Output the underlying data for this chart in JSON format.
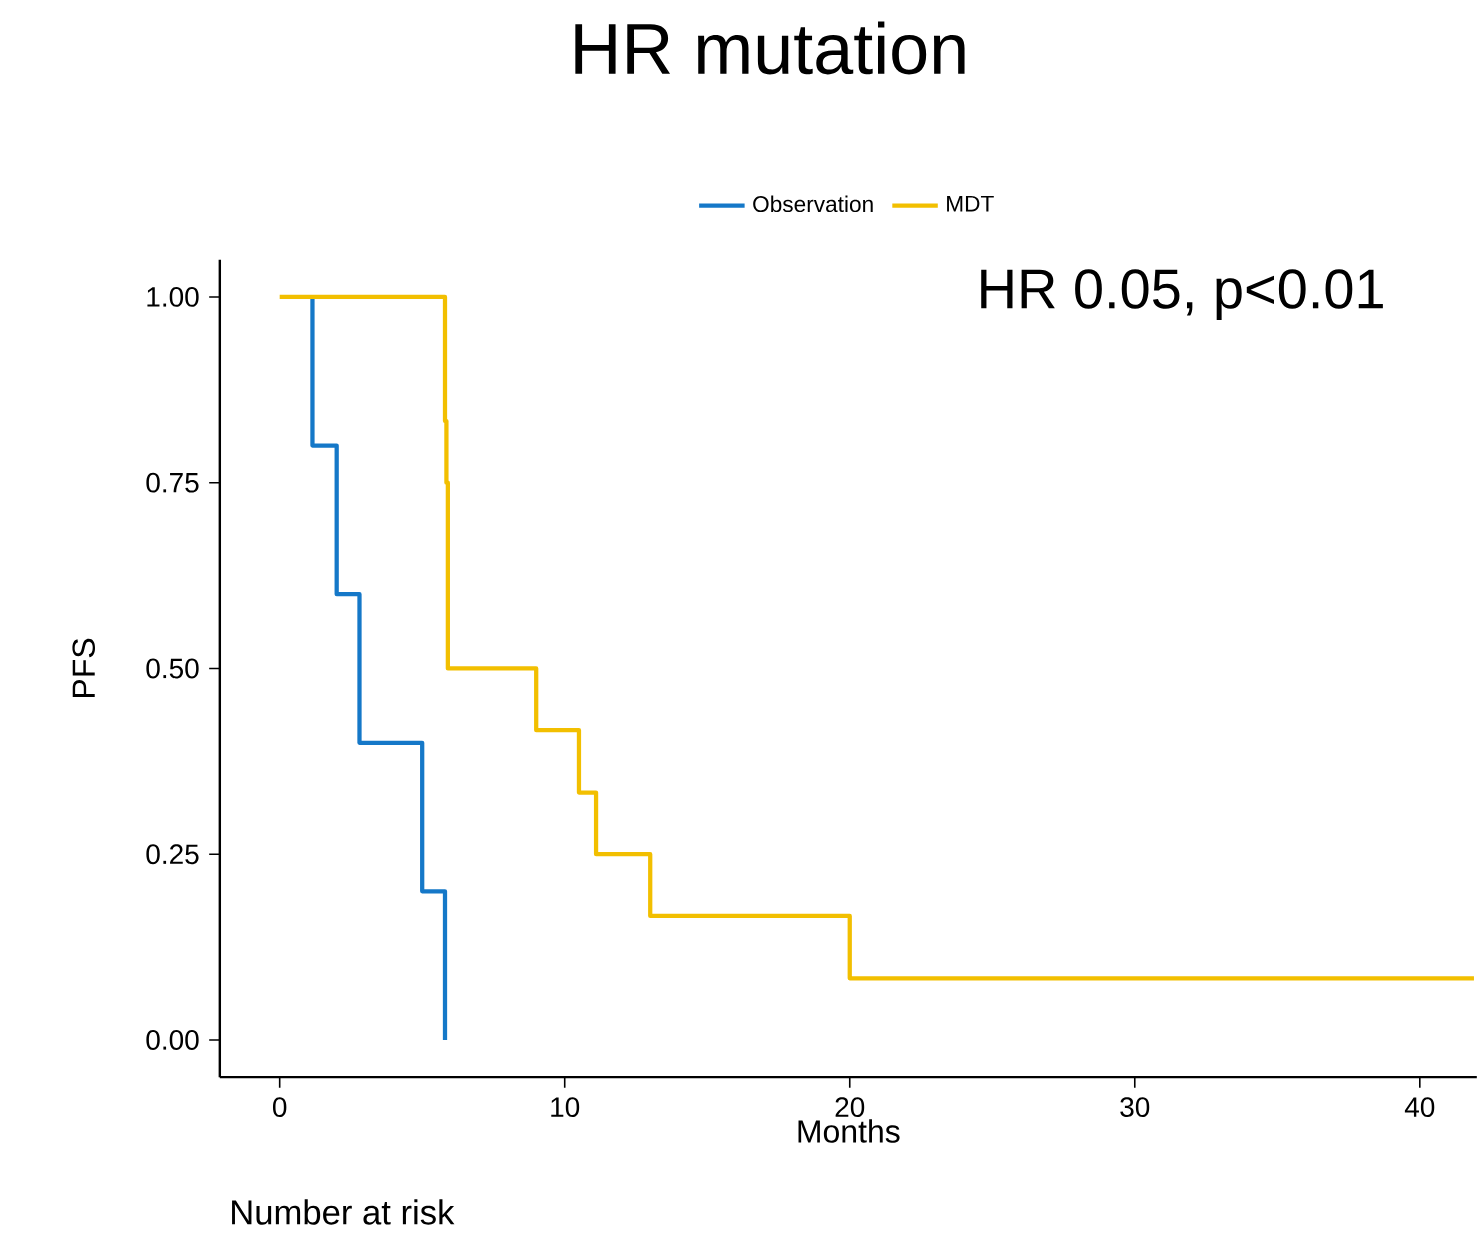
{
  "chart_data": {
    "type": "step",
    "title": "HR mutation",
    "xlabel": "Months",
    "ylabel": "PFS",
    "annotations": [
      "HR 0.05, p<0.01",
      "Number at risk"
    ],
    "series": [
      {
        "name": "Observation",
        "color": "#1578c8",
        "x": [
          1.15,
          1.15,
          2.0,
          2.8,
          5.0,
          5.8
        ],
        "values": [
          1.0,
          0.8,
          0.6,
          0.4,
          0.2,
          0.0
        ]
      },
      {
        "name": "MDT",
        "color": "#f2bf00",
        "x": [
          0,
          5.8,
          5.85,
          5.9,
          9.0,
          10.5,
          11.1,
          13.0,
          20.0,
          41.9
        ],
        "values": [
          1.0,
          0.833,
          0.75,
          0.5,
          0.417,
          0.333,
          0.25,
          0.167,
          0.083,
          0.083
        ]
      }
    ],
    "xlim": [
      -2.1,
      42
    ],
    "ylim": [
      -0.05,
      1.05
    ],
    "xticks": [
      0,
      10,
      20,
      30,
      40
    ],
    "yticks": [
      {
        "value": 0,
        "label": "0.00"
      },
      {
        "value": 0.25,
        "label": "0.25"
      },
      {
        "value": 0.5,
        "label": "0.50"
      },
      {
        "value": 0.75,
        "label": "0.75"
      },
      {
        "value": 1.0,
        "label": "1.00"
      }
    ],
    "grid": false,
    "legend": "top"
  }
}
